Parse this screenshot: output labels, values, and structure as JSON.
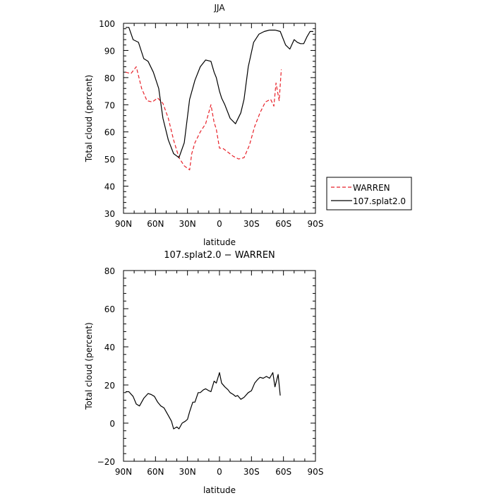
{
  "chart_data": [
    {
      "type": "line",
      "title": "JJA",
      "xlabel": "latitude",
      "ylabel": "Total cloud (percent)",
      "xlim": [
        90,
        -90
      ],
      "ylim": [
        30,
        100
      ],
      "x_ticks": [
        90,
        60,
        30,
        0,
        -30,
        -60,
        -90
      ],
      "x_tick_labels": [
        "90N",
        "60N",
        "30N",
        "0",
        "30S",
        "60S",
        "90S"
      ],
      "y_ticks": [
        30,
        40,
        50,
        60,
        70,
        80,
        90,
        100
      ],
      "y_tick_labels": [
        "30",
        "40",
        "50",
        "60",
        "70",
        "80",
        "90",
        "100"
      ],
      "legend_position": "right",
      "series": [
        {
          "name": "WARREN",
          "color": "#e8222a",
          "dash": true,
          "x": [
            88,
            83,
            78,
            73,
            68,
            63,
            58,
            53,
            48,
            43,
            38,
            33,
            28,
            26,
            23,
            18,
            13,
            8,
            5,
            3,
            0,
            -3,
            -8,
            -13,
            -18,
            -23,
            -28,
            -33,
            -38,
            -43,
            -48,
            -51,
            -53,
            -56,
            -58
          ],
          "y": [
            82,
            81.5,
            84,
            76,
            71.5,
            71,
            72.5,
            70.5,
            65,
            57,
            50.5,
            47.5,
            46,
            52,
            56,
            60,
            63,
            70,
            63.5,
            61,
            54,
            54,
            52.5,
            51,
            50,
            50.5,
            55,
            62,
            67,
            71,
            72,
            69.5,
            78,
            71.5,
            83
          ]
        },
        {
          "name": "107.splat2.0",
          "color": "#000000",
          "dash": false,
          "x": [
            88,
            85,
            81,
            76,
            71,
            67,
            62,
            57,
            53,
            48,
            43,
            38,
            33,
            28,
            23,
            18,
            13,
            8,
            5,
            3,
            0,
            -2,
            -5,
            -10,
            -15,
            -20,
            -23,
            -27,
            -32,
            -37,
            -42,
            -47,
            -52,
            -57,
            -62,
            -66,
            -70,
            -73,
            -76,
            -79,
            -82,
            -85,
            -88
          ],
          "y": [
            98.5,
            98.5,
            94,
            93,
            87,
            86,
            82,
            76,
            65,
            57,
            52,
            50.5,
            56,
            72,
            79,
            84,
            86.5,
            86,
            82,
            80,
            75,
            72.5,
            70,
            65,
            63,
            67,
            72,
            84,
            93,
            96,
            97,
            97.5,
            97.5,
            97,
            92,
            90.5,
            94,
            93,
            92.5,
            92.5,
            95,
            97,
            97
          ]
        }
      ]
    },
    {
      "type": "line",
      "title": "107.splat2.0 − WARREN",
      "xlabel": "latitude",
      "ylabel": "Total cloud (percent)",
      "xlim": [
        90,
        -90
      ],
      "ylim": [
        -20,
        80
      ],
      "x_ticks": [
        90,
        60,
        30,
        0,
        -30,
        -60,
        -90
      ],
      "x_tick_labels": [
        "90N",
        "60N",
        "30N",
        "0",
        "30S",
        "60S",
        "90S"
      ],
      "y_ticks": [
        -20,
        0,
        20,
        40,
        60,
        80
      ],
      "y_tick_labels": [
        "−20",
        "0",
        "20",
        "40",
        "60",
        "80"
      ],
      "series": [
        {
          "color": "#000000",
          "dash": false,
          "x": [
            88,
            85,
            81,
            78,
            75,
            71,
            67,
            64,
            61,
            58,
            55,
            52,
            48,
            45,
            43,
            40,
            38,
            35,
            32,
            30,
            28,
            25,
            23,
            20,
            18,
            15,
            13,
            10,
            8,
            5,
            3,
            0,
            -2,
            -5,
            -8,
            -10,
            -13,
            -15,
            -17,
            -20,
            -23,
            -27,
            -30,
            -33,
            -36,
            -38,
            -41,
            -44,
            -47,
            -50,
            -52,
            -55,
            -57
          ],
          "y": [
            16.5,
            16.5,
            14,
            10,
            9,
            13,
            15.5,
            15,
            14,
            11,
            9,
            8,
            4,
            1,
            -3,
            -2,
            -3,
            0,
            1,
            2,
            6,
            11,
            11,
            16,
            16,
            17.5,
            18,
            17,
            16.5,
            22,
            21,
            26.5,
            21,
            19,
            17.5,
            16,
            15,
            14,
            14.5,
            12.5,
            13.5,
            16,
            17,
            21,
            23,
            24,
            23.5,
            24.5,
            23.5,
            26.5,
            19,
            25.5,
            14.5
          ]
        }
      ]
    }
  ]
}
